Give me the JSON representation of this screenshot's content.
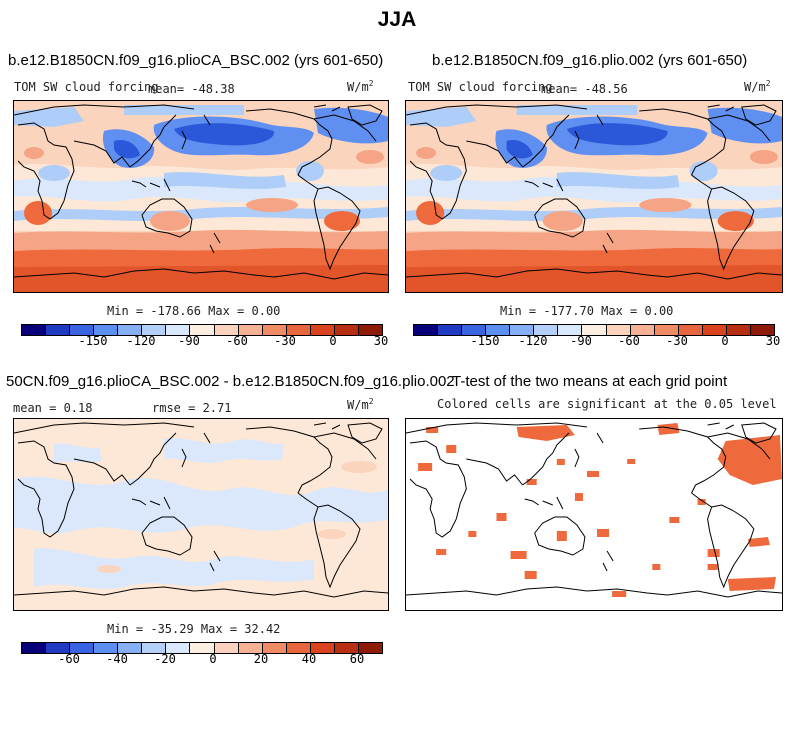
{
  "figure": {
    "title": "JJA"
  },
  "panels": {
    "p1": {
      "title": "b.e12.B1850CN.f09_g16.plioCA_BSC.002 (yrs 601-650)",
      "variable": "TOM SW cloud forcing",
      "mean": "mean= -48.38",
      "units": "W/m",
      "units_exp": "2",
      "minmax": "Min = -178.66 Max =   0.00"
    },
    "p2": {
      "title": "b.e12.B1850CN.f09_g16.plio.002 (yrs 601-650)",
      "variable": "TOM SW cloud forcing",
      "mean": "mean= -48.56",
      "units": "W/m",
      "units_exp": "2",
      "minmax": "Min = -177.70 Max =   0.00"
    },
    "p3": {
      "title": "50CN.f09_g16.plioCA_BSC.002 - b.e12.B1850CN.f09_g16.plio.002",
      "mean": "mean =   0.18",
      "rmse": "rmse =   2.71",
      "units": "W/m",
      "units_exp": "2",
      "minmax": "Min = -35.29 Max =  32.42"
    },
    "p4": {
      "title": "T-test of the two means at each grid point",
      "subtitle": "Colored cells are significant at the 0.05 level"
    }
  },
  "colorbars": {
    "absolute": {
      "colors": [
        "#08007a",
        "#1f3bc4",
        "#3a63df",
        "#5b8ff0",
        "#85b0f6",
        "#b4d0f8",
        "#d9e9fb",
        "#fdeee2",
        "#fbd3bc",
        "#f7b194",
        "#f08b66",
        "#e8663e",
        "#d9441f",
        "#b82e12",
        "#8e1b08"
      ],
      "ticks": [
        "-150",
        "-120",
        "-90",
        "-60",
        "-30",
        "0",
        "30"
      ]
    },
    "difference": {
      "colors": [
        "#08007a",
        "#1f3bc4",
        "#3a63df",
        "#5b8ff0",
        "#85b0f6",
        "#b4d0f8",
        "#d9e9fb",
        "#fdeee2",
        "#fbd3bc",
        "#f7b194",
        "#f08b66",
        "#e8663e",
        "#d9441f",
        "#b82e12",
        "#8e1b08"
      ],
      "ticks": [
        "-60",
        "-40",
        "-20",
        "0",
        "20",
        "40",
        "60"
      ]
    }
  },
  "colors": {
    "orange": "#ee6a3c",
    "deep_orange": "#e2542a",
    "light_orange": "#f5a585",
    "peach": "#fbd4bd",
    "blue": "#2a58d8",
    "mid_blue": "#5f8ff0",
    "light_blue": "#aecdf8",
    "pale_blue": "#dbe8fb",
    "pale_peach": "#fde7d6"
  }
}
